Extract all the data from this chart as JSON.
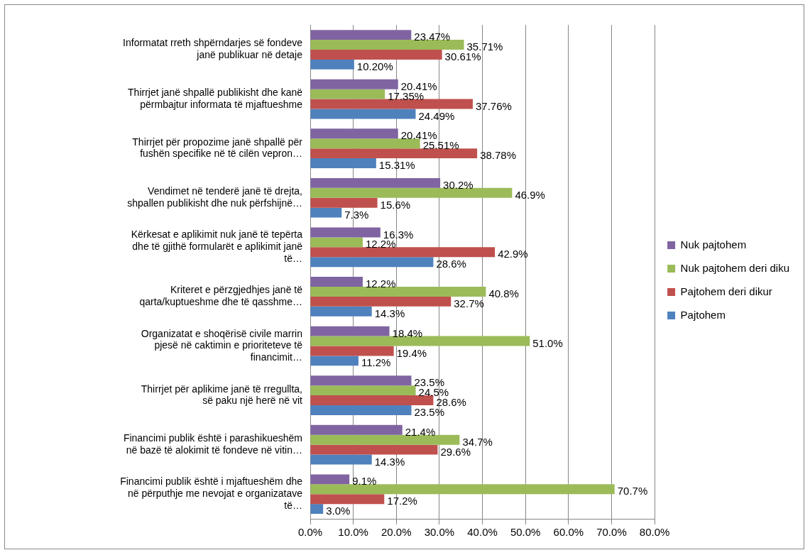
{
  "chart_data": {
    "type": "bar",
    "orientation": "horizontal",
    "categories": [
      "Informatat rreth shpërndarjes së fondeve janë publikuar në detaje",
      "Thirrjet janë shpallë publikisht dhe kanë përmbajtur informata të mjaftueshme",
      "Thirrjet për propozime janë shpallë për fushën specifike në të cilën vepron…",
      "Vendimet në tenderë janë të drejta, shpallen publikisht dhe nuk përfshijnë…",
      "Kërkesat e aplikimit nuk janë të tepërta dhe të gjithë formularët e aplikimit janë të…",
      "Kriteret e përzgjedhjes janë të qarta/kuptueshme dhe të qasshme…",
      "Organizatat e shoqërisë civile marrin pjesë në caktimin e prioriteteve të financimit…",
      "Thirrjet për aplikime janë të rregullta, së paku një herë në vit",
      "Financimi publik është i parashikueshëm në bazë të alokimit të fondeve në vitin…",
      "Financimi publik është i mjaftueshëm dhe në përputhje me nevojat e organizatave të…"
    ],
    "series": [
      {
        "name": "Nuk pajtohem",
        "color": "#8064a2",
        "values": [
          23.47,
          20.41,
          20.41,
          30.2,
          16.3,
          12.2,
          18.4,
          23.5,
          21.4,
          9.1
        ],
        "value_labels": [
          "23.47%",
          "20.41%",
          "20.41%",
          "30.2%",
          "16.3%",
          "12.2%",
          "18.4%",
          "23.5%",
          "21.4%",
          "9.1%"
        ]
      },
      {
        "name": "Nuk pajtohem deri diku",
        "color": "#9bbb59",
        "values": [
          35.71,
          17.35,
          25.51,
          46.9,
          12.2,
          40.8,
          51.0,
          24.5,
          34.7,
          70.7
        ],
        "value_labels": [
          "35.71%",
          "17.35%",
          "25.51%",
          "46.9%",
          "12.2%",
          "40.8%",
          "51.0%",
          "24.5%",
          "34.7%",
          "70.7%"
        ]
      },
      {
        "name": "Pajtohem deri dikur",
        "color": "#c0504d",
        "values": [
          30.61,
          37.76,
          38.78,
          15.6,
          42.9,
          32.7,
          19.4,
          28.6,
          29.6,
          17.2
        ],
        "value_labels": [
          "30.61%",
          "37.76%",
          "38.78%",
          "15.6%",
          "42.9%",
          "32.7%",
          "19.4%",
          "28.6%",
          "29.6%",
          "17.2%"
        ]
      },
      {
        "name": "Pajtohem",
        "color": "#4f81bd",
        "values": [
          10.2,
          24.49,
          15.31,
          7.3,
          28.6,
          14.3,
          11.2,
          23.5,
          14.3,
          3.0
        ],
        "value_labels": [
          "10.20%",
          "24.49%",
          "15.31%",
          "7.3%",
          "28.6%",
          "14.3%",
          "11.2%",
          "23.5%",
          "14.3%",
          "3.0%"
        ]
      }
    ],
    "xlim": [
      0,
      80
    ],
    "xticks": [
      {
        "value": 0,
        "label": "0.0%"
      },
      {
        "value": 10,
        "label": "10.0%"
      },
      {
        "value": 20,
        "label": "20.0%"
      },
      {
        "value": 30,
        "label": "30.0%"
      },
      {
        "value": 40,
        "label": "40.0%"
      },
      {
        "value": 50,
        "label": "50.0%"
      },
      {
        "value": 60,
        "label": "60.0%"
      },
      {
        "value": 70,
        "label": "70.0%"
      },
      {
        "value": 80,
        "label": "80.0%"
      }
    ],
    "grid": "x",
    "legend": "right"
  }
}
